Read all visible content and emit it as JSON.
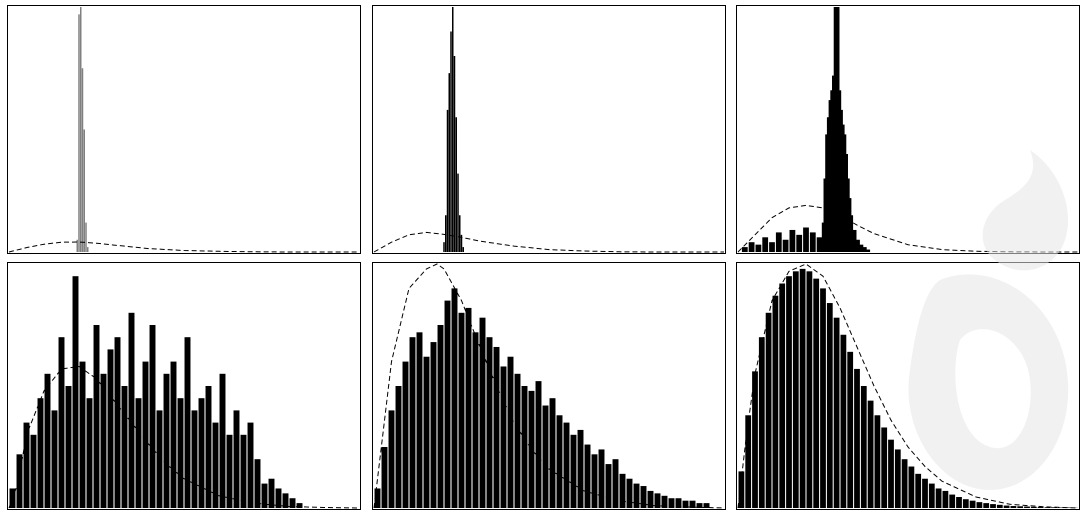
{
  "chart_data": [
    {
      "type": "bar",
      "title": "",
      "xlabel": "",
      "ylabel": "",
      "xlim": [
        0,
        1
      ],
      "ylim": [
        0,
        1
      ],
      "bar_color": "#808080",
      "reference_curve": {
        "style": "dashed",
        "x": [
          0.0,
          0.05,
          0.1,
          0.15,
          0.2,
          0.25,
          0.3,
          0.4,
          0.5,
          0.6,
          0.7,
          0.8,
          0.9,
          1.0
        ],
        "y": [
          0.0,
          0.018,
          0.032,
          0.04,
          0.041,
          0.036,
          0.028,
          0.014,
          0.006,
          0.003,
          0.001,
          0.0,
          0.0,
          0.0
        ]
      },
      "histogram": {
        "x": [
          0.195,
          0.2,
          0.205,
          0.21,
          0.215,
          0.22,
          0.225
        ],
        "values": [
          0.05,
          0.97,
          1.0,
          0.75,
          0.5,
          0.12,
          0.02
        ]
      }
    },
    {
      "type": "bar",
      "title": "",
      "xlabel": "",
      "ylabel": "",
      "xlim": [
        0,
        1
      ],
      "ylim": [
        0,
        1
      ],
      "bar_color": "#000000",
      "reference_curve": {
        "style": "dashed",
        "x": [
          0.0,
          0.05,
          0.1,
          0.15,
          0.2,
          0.25,
          0.3,
          0.4,
          0.5,
          0.6,
          0.7,
          0.8,
          0.9,
          1.0
        ],
        "y": [
          0.0,
          0.04,
          0.07,
          0.08,
          0.072,
          0.06,
          0.045,
          0.024,
          0.01,
          0.004,
          0.001,
          0.0,
          0.0,
          0.0
        ]
      },
      "histogram": {
        "x": [
          0.2,
          0.205,
          0.21,
          0.215,
          0.22,
          0.225,
          0.23,
          0.235,
          0.24,
          0.245,
          0.25,
          0.255
        ],
        "values": [
          0.04,
          0.15,
          0.58,
          0.73,
          0.9,
          1.0,
          0.8,
          0.55,
          0.32,
          0.15,
          0.07,
          0.02
        ]
      }
    },
    {
      "type": "bar",
      "title": "",
      "xlabel": "",
      "ylabel": "",
      "xlim": [
        0,
        1
      ],
      "ylim": [
        0,
        1
      ],
      "bar_color": "#000000",
      "reference_curve": {
        "style": "dashed",
        "x": [
          0.0,
          0.05,
          0.1,
          0.15,
          0.2,
          0.25,
          0.3,
          0.35,
          0.4,
          0.5,
          0.6,
          0.7,
          0.8,
          0.9,
          1.0
        ],
        "y": [
          0.0,
          0.07,
          0.14,
          0.18,
          0.19,
          0.18,
          0.15,
          0.11,
          0.075,
          0.03,
          0.01,
          0.003,
          0.001,
          0.0,
          0.0
        ]
      },
      "histogram": {
        "x": [
          0.02,
          0.04,
          0.06,
          0.08,
          0.1,
          0.12,
          0.14,
          0.16,
          0.18,
          0.2,
          0.22,
          0.24,
          0.255,
          0.26,
          0.265,
          0.27,
          0.275,
          0.28,
          0.285,
          0.29,
          0.295,
          0.3,
          0.305,
          0.31,
          0.315,
          0.32,
          0.325,
          0.33,
          0.34,
          0.35,
          0.36,
          0.37,
          0.38
        ],
        "values": [
          0.02,
          0.04,
          0.03,
          0.06,
          0.04,
          0.08,
          0.05,
          0.09,
          0.07,
          0.1,
          0.08,
          0.06,
          0.12,
          0.3,
          0.48,
          0.55,
          0.62,
          0.66,
          0.72,
          1.0,
          0.66,
          0.58,
          0.52,
          0.48,
          0.4,
          0.3,
          0.22,
          0.15,
          0.09,
          0.05,
          0.03,
          0.02,
          0.01
        ]
      }
    },
    {
      "type": "bar",
      "title": "",
      "xlabel": "",
      "ylabel": "",
      "xlim": [
        0,
        1
      ],
      "ylim": [
        0,
        1
      ],
      "bar_color": "#000000",
      "reference_curve": {
        "style": "dashed",
        "x": [
          0.0,
          0.025,
          0.05,
          0.1,
          0.15,
          0.2,
          0.25,
          0.3,
          0.35,
          0.4,
          0.45,
          0.5,
          0.6,
          0.7,
          0.8,
          0.9,
          1.0
        ],
        "y": [
          0.0,
          0.1,
          0.3,
          0.48,
          0.57,
          0.58,
          0.53,
          0.44,
          0.35,
          0.26,
          0.18,
          0.12,
          0.05,
          0.02,
          0.006,
          0.002,
          0.0
        ]
      },
      "histogram": {
        "x": [
          0.01,
          0.03,
          0.05,
          0.07,
          0.09,
          0.11,
          0.13,
          0.15,
          0.17,
          0.19,
          0.21,
          0.23,
          0.25,
          0.27,
          0.29,
          0.31,
          0.33,
          0.35,
          0.37,
          0.39,
          0.41,
          0.43,
          0.45,
          0.47,
          0.49,
          0.51,
          0.53,
          0.55,
          0.57,
          0.59,
          0.61,
          0.63,
          0.65,
          0.67,
          0.69,
          0.71,
          0.73,
          0.75,
          0.77,
          0.79,
          0.81,
          0.83
        ],
        "values": [
          0.08,
          0.22,
          0.35,
          0.3,
          0.45,
          0.55,
          0.4,
          0.7,
          0.5,
          0.95,
          0.6,
          0.45,
          0.75,
          0.55,
          0.65,
          0.7,
          0.5,
          0.8,
          0.45,
          0.6,
          0.75,
          0.4,
          0.55,
          0.6,
          0.45,
          0.7,
          0.4,
          0.45,
          0.5,
          0.35,
          0.55,
          0.3,
          0.4,
          0.3,
          0.35,
          0.2,
          0.1,
          0.12,
          0.08,
          0.06,
          0.04,
          0.02
        ]
      }
    },
    {
      "type": "bar",
      "title": "",
      "xlabel": "",
      "ylabel": "",
      "xlim": [
        0,
        1
      ],
      "ylim": [
        0,
        1
      ],
      "bar_color": "#000000",
      "reference_curve": {
        "style": "dashed",
        "x": [
          0.0,
          0.025,
          0.05,
          0.1,
          0.15,
          0.18,
          0.2,
          0.25,
          0.3,
          0.35,
          0.4,
          0.45,
          0.5,
          0.6,
          0.7,
          0.8,
          0.9,
          1.0
        ],
        "y": [
          0.0,
          0.3,
          0.6,
          0.9,
          0.98,
          1.0,
          0.98,
          0.85,
          0.67,
          0.5,
          0.35,
          0.24,
          0.16,
          0.07,
          0.03,
          0.01,
          0.004,
          0.0
        ]
      },
      "histogram": {
        "x": [
          0.01,
          0.03,
          0.05,
          0.07,
          0.09,
          0.11,
          0.13,
          0.15,
          0.17,
          0.19,
          0.21,
          0.23,
          0.25,
          0.27,
          0.29,
          0.31,
          0.33,
          0.35,
          0.37,
          0.39,
          0.41,
          0.43,
          0.45,
          0.47,
          0.49,
          0.51,
          0.53,
          0.55,
          0.57,
          0.59,
          0.61,
          0.63,
          0.65,
          0.67,
          0.69,
          0.71,
          0.73,
          0.75,
          0.77,
          0.79,
          0.81,
          0.83,
          0.85,
          0.87,
          0.89,
          0.91,
          0.93,
          0.95
        ],
        "values": [
          0.08,
          0.25,
          0.4,
          0.5,
          0.6,
          0.7,
          0.72,
          0.62,
          0.68,
          0.75,
          0.85,
          0.9,
          0.8,
          0.82,
          0.72,
          0.78,
          0.7,
          0.66,
          0.58,
          0.62,
          0.55,
          0.5,
          0.48,
          0.52,
          0.42,
          0.45,
          0.38,
          0.35,
          0.3,
          0.32,
          0.26,
          0.22,
          0.24,
          0.18,
          0.2,
          0.14,
          0.12,
          0.1,
          0.09,
          0.07,
          0.06,
          0.05,
          0.04,
          0.04,
          0.03,
          0.03,
          0.02,
          0.02
        ]
      }
    },
    {
      "type": "bar",
      "title": "",
      "xlabel": "",
      "ylabel": "",
      "xlim": [
        0,
        1
      ],
      "ylim": [
        0,
        1
      ],
      "bar_color": "#000000",
      "reference_curve": {
        "style": "dashed",
        "x": [
          0.0,
          0.025,
          0.05,
          0.1,
          0.15,
          0.2,
          0.25,
          0.3,
          0.35,
          0.4,
          0.45,
          0.5,
          0.55,
          0.6,
          0.7,
          0.8,
          0.9,
          1.0
        ],
        "y": [
          0.0,
          0.3,
          0.55,
          0.85,
          0.97,
          1.0,
          0.95,
          0.82,
          0.66,
          0.5,
          0.36,
          0.25,
          0.17,
          0.11,
          0.045,
          0.015,
          0.005,
          0.0
        ]
      },
      "histogram": {
        "x": [
          0.01,
          0.03,
          0.05,
          0.07,
          0.09,
          0.11,
          0.13,
          0.15,
          0.17,
          0.19,
          0.21,
          0.23,
          0.25,
          0.27,
          0.29,
          0.31,
          0.33,
          0.35,
          0.37,
          0.39,
          0.41,
          0.43,
          0.45,
          0.47,
          0.49,
          0.51,
          0.53,
          0.55,
          0.57,
          0.59,
          0.61,
          0.63,
          0.65,
          0.67,
          0.69,
          0.71,
          0.73,
          0.75,
          0.77,
          0.79,
          0.81,
          0.83,
          0.85,
          0.87,
          0.89,
          0.91,
          0.93,
          0.95,
          0.97,
          0.99
        ],
        "values": [
          0.15,
          0.38,
          0.56,
          0.7,
          0.8,
          0.87,
          0.92,
          0.95,
          0.97,
          0.98,
          0.97,
          0.94,
          0.9,
          0.84,
          0.78,
          0.71,
          0.64,
          0.57,
          0.5,
          0.44,
          0.38,
          0.33,
          0.28,
          0.24,
          0.2,
          0.17,
          0.14,
          0.12,
          0.1,
          0.08,
          0.07,
          0.055,
          0.045,
          0.036,
          0.03,
          0.024,
          0.02,
          0.016,
          0.013,
          0.01,
          0.008,
          0.007,
          0.006,
          0.005,
          0.004,
          0.003,
          0.003,
          0.002,
          0.002,
          0.001
        ]
      }
    }
  ],
  "decoration": {
    "watermark_color": "#ffffff",
    "watermark_fill": "#e6e6e6"
  }
}
